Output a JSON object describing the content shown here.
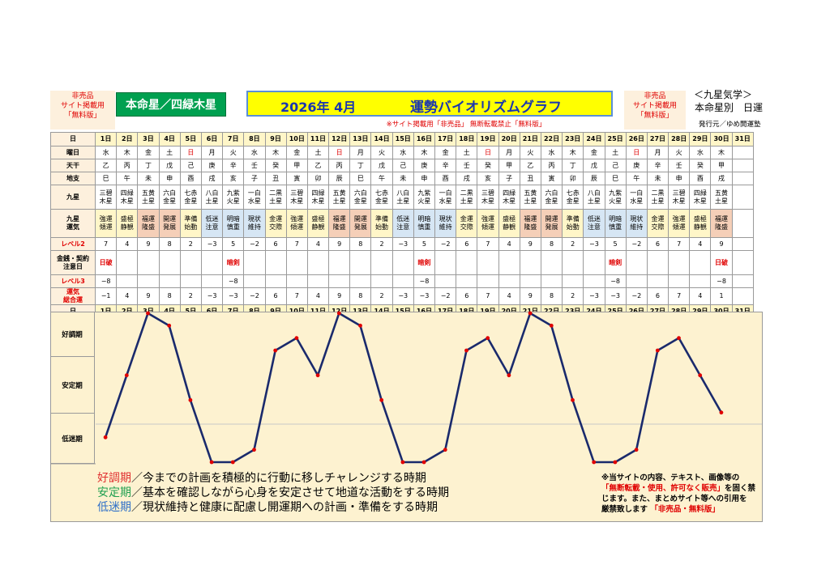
{
  "header": {
    "left_note": [
      "非売品",
      "サイト掲載用",
      "「無料版」"
    ],
    "main_star": "本命星／四緑木星",
    "title_date": "2026年 4月",
    "title_main": "運勢バイオリズムグラフ",
    "notice": "※サイト掲載用「非売品」 無断転載禁止「無料版」",
    "right_note": [
      "非売品",
      "サイト掲載用",
      "「無料版」"
    ],
    "kyusei_title": "＜九星気学＞",
    "honmei": "本命星別　日運",
    "issuer": "発行元／ゆめ開運塾"
  },
  "row_labels": {
    "day": "日",
    "weekday": "曜日",
    "kanshi": "天干",
    "shi": "地支",
    "star": "九星",
    "unsei": [
      "九星",
      "運気"
    ],
    "lvl2": "レベル2",
    "money": [
      "金銭・契約",
      "注意日"
    ],
    "lvl3": "レベル3",
    "total": [
      "運気",
      "総合運"
    ]
  },
  "days": [
    "1日",
    "2日",
    "3日",
    "4日",
    "5日",
    "6日",
    "7日",
    "8日",
    "9日",
    "10日",
    "11日",
    "12日",
    "13日",
    "14日",
    "15日",
    "16日",
    "17日",
    "18日",
    "19日",
    "20日",
    "21日",
    "22日",
    "23日",
    "24日",
    "25日",
    "26日",
    "27日",
    "28日",
    "29日",
    "30日",
    "31日"
  ],
  "weekdays": [
    "水",
    "木",
    "金",
    "土",
    "日",
    "月",
    "火",
    "水",
    "木",
    "金",
    "土",
    "日",
    "月",
    "火",
    "水",
    "木",
    "金",
    "土",
    "日",
    "月",
    "火",
    "水",
    "木",
    "金",
    "土",
    "日",
    "月",
    "火",
    "水",
    "木",
    ""
  ],
  "sunday_index": [
    4,
    11,
    18,
    25
  ],
  "tenkan": [
    "乙",
    "丙",
    "丁",
    "戊",
    "己",
    "庚",
    "辛",
    "壬",
    "癸",
    "甲",
    "乙",
    "丙",
    "丁",
    "戊",
    "己",
    "庚",
    "辛",
    "壬",
    "癸",
    "甲",
    "乙",
    "丙",
    "丁",
    "戊",
    "己",
    "庚",
    "辛",
    "壬",
    "癸",
    "甲",
    ""
  ],
  "chishi": [
    "巳",
    "午",
    "未",
    "申",
    "酉",
    "戌",
    "亥",
    "子",
    "丑",
    "寅",
    "卯",
    "辰",
    "巳",
    "午",
    "未",
    "申",
    "酉",
    "戌",
    "亥",
    "子",
    "丑",
    "寅",
    "卯",
    "辰",
    "巳",
    "午",
    "未",
    "申",
    "酉",
    "戌",
    ""
  ],
  "stars": [
    [
      "三碧",
      "木星"
    ],
    [
      "四緑",
      "木星"
    ],
    [
      "五黄",
      "土星"
    ],
    [
      "六白",
      "金星"
    ],
    [
      "七赤",
      "金星"
    ],
    [
      "八白",
      "土星"
    ],
    [
      "九紫",
      "火星"
    ],
    [
      "一白",
      "水星"
    ],
    [
      "二黒",
      "土星"
    ],
    [
      "三碧",
      "木星"
    ],
    [
      "四緑",
      "木星"
    ],
    [
      "五黄",
      "土星"
    ],
    [
      "六白",
      "金星"
    ],
    [
      "七赤",
      "金星"
    ],
    [
      "八白",
      "土星"
    ],
    [
      "九紫",
      "火星"
    ],
    [
      "一白",
      "水星"
    ],
    [
      "二黒",
      "土星"
    ],
    [
      "三碧",
      "木星"
    ],
    [
      "四緑",
      "木星"
    ],
    [
      "五黄",
      "土星"
    ],
    [
      "六白",
      "金星"
    ],
    [
      "七赤",
      "金星"
    ],
    [
      "八白",
      "土星"
    ],
    [
      "九紫",
      "火星"
    ],
    [
      "一白",
      "水星"
    ],
    [
      "二黒",
      "土星"
    ],
    [
      "三碧",
      "木星"
    ],
    [
      "四緑",
      "木星"
    ],
    [
      "五黄",
      "土星"
    ],
    [
      "",
      ""
    ]
  ],
  "unsei": [
    [
      "強運",
      "傾運"
    ],
    [
      "盛極",
      "静観"
    ],
    [
      "福運",
      "隆盛"
    ],
    [
      "開運",
      "発展"
    ],
    [
      "準備",
      "始動"
    ],
    [
      "低迷",
      "注意"
    ],
    [
      "明暗",
      "慎重"
    ],
    [
      "現状",
      "維持"
    ],
    [
      "金運",
      "交際"
    ],
    [
      "強運",
      "傾運"
    ],
    [
      "盛極",
      "静観"
    ],
    [
      "福運",
      "隆盛"
    ],
    [
      "開運",
      "発展"
    ],
    [
      "準備",
      "始動"
    ],
    [
      "低迷",
      "注意"
    ],
    [
      "明暗",
      "慎重"
    ],
    [
      "現状",
      "維持"
    ],
    [
      "金運",
      "交際"
    ],
    [
      "強運",
      "傾運"
    ],
    [
      "盛極",
      "静観"
    ],
    [
      "福運",
      "隆盛"
    ],
    [
      "開運",
      "発展"
    ],
    [
      "準備",
      "始動"
    ],
    [
      "低迷",
      "注意"
    ],
    [
      "明暗",
      "慎重"
    ],
    [
      "現状",
      "維持"
    ],
    [
      "金運",
      "交際"
    ],
    [
      "強運",
      "傾運"
    ],
    [
      "盛極",
      "静観"
    ],
    [
      "福運",
      "隆盛"
    ],
    [
      "",
      ""
    ]
  ],
  "unsei_class": [
    "stable",
    "stable",
    "good",
    "good",
    "stable",
    "low",
    "low",
    "low",
    "stable",
    "stable",
    "stable",
    "good",
    "good",
    "stable",
    "low",
    "low",
    "low",
    "stable",
    "stable",
    "stable",
    "good",
    "good",
    "stable",
    "low",
    "low",
    "low",
    "stable",
    "stable",
    "stable",
    "good",
    ""
  ],
  "level2": [
    "7",
    "4",
    "9",
    "8",
    "2",
    "−3",
    "5",
    "−2",
    "6",
    "7",
    "4",
    "9",
    "8",
    "2",
    "−3",
    "5",
    "−2",
    "6",
    "7",
    "4",
    "9",
    "8",
    "2",
    "−3",
    "5",
    "−2",
    "6",
    "7",
    "4",
    "9",
    ""
  ],
  "money": [
    "日破",
    "",
    "",
    "",
    "",
    "",
    "暗剣",
    "",
    "",
    "",
    "",
    "",
    "",
    "",
    "",
    "暗剣",
    "",
    "",
    "",
    "",
    "",
    "",
    "",
    "",
    "暗剣",
    "",
    "",
    "",
    "",
    "日破",
    ""
  ],
  "level3": [
    "−8",
    "",
    "",
    "",
    "",
    "",
    "−8",
    "",
    "",
    "",
    "",
    "",
    "",
    "",
    "",
    "−8",
    "",
    "",
    "",
    "",
    "",
    "",
    "",
    "",
    "−8",
    "",
    "",
    "",
    "",
    "−8",
    ""
  ],
  "total": [
    "−1",
    "4",
    "9",
    "8",
    "2",
    "−3",
    "−3",
    "−2",
    "6",
    "7",
    "4",
    "9",
    "8",
    "2",
    "−3",
    "−3",
    "−2",
    "6",
    "7",
    "4",
    "9",
    "8",
    "2",
    "−3",
    "−3",
    "−2",
    "6",
    "7",
    "4",
    "1",
    ""
  ],
  "side_labels": {
    "good": "好調期",
    "stable": "安定期",
    "low": "低迷期"
  },
  "legend": {
    "good_key": "好調期",
    "good_text": "／今までの計画を積極的に行動に移しチャレンジする時期",
    "stable_key": "安定期",
    "stable_text": "／基本を確認しながら心身を安定させて地道な活動をする時期",
    "low_key": "低迷期",
    "low_text": "／現状維持と健康に配慮し開運期への計画・準備をする時期"
  },
  "footer": {
    "line1": "※当サイトの内容、テキスト、画像等の",
    "line2_red": "「無断転載・使用、許可なく販売」",
    "line2_rest": "を固く禁",
    "line3": "じます。また、まとめサイト等への引用を",
    "line4": "厳禁致します",
    "line4_red": "「非売品・無料版」"
  },
  "chart_data": {
    "type": "line",
    "x": [
      1,
      2,
      3,
      4,
      5,
      6,
      7,
      8,
      9,
      10,
      11,
      12,
      13,
      14,
      15,
      16,
      17,
      18,
      19,
      20,
      21,
      22,
      23,
      24,
      25,
      26,
      27,
      28,
      29,
      30
    ],
    "values": [
      -1,
      4,
      9,
      8,
      2,
      -3,
      -3,
      -2,
      6,
      7,
      4,
      9,
      8,
      2,
      -3,
      -3,
      -2,
      6,
      7,
      4,
      9,
      8,
      2,
      -3,
      -3,
      -2,
      6,
      7,
      4,
      1
    ],
    "ylim": [
      -3,
      9
    ],
    "title": "運勢バイオリズムグラフ",
    "series_color": "#1a2a6c",
    "point_color": "#e00000"
  }
}
